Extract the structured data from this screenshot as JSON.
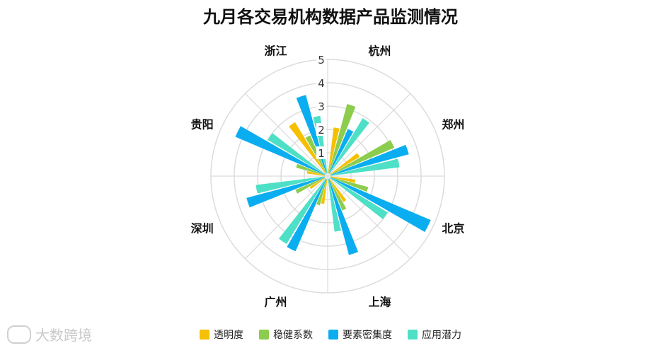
{
  "title": "九月各交易机构数据产品监测情况",
  "watermark": "大数跨境",
  "colors": {
    "透明度": "#f5c000",
    "稳健系数": "#8ccd4d",
    "要素密集度": "#0aaef0",
    "应用潜力": "#4ee0c6"
  },
  "chart_data": {
    "type": "polar-bar",
    "title": "九月各交易机构数据产品监测情况",
    "categories": [
      "杭州",
      "郑州",
      "北京",
      "上海",
      "广州",
      "深圳",
      "贵阳",
      "浙江"
    ],
    "radial_ticks": [
      "1",
      "2",
      "3",
      "4",
      "5"
    ],
    "rlim": [
      0,
      5
    ],
    "series": [
      {
        "name": "透明度",
        "color": "#f5c000",
        "values": [
          2.1,
          1.6,
          1.2,
          1.3,
          1.2,
          0.9,
          0.9,
          2.7
        ]
      },
      {
        "name": "稳健系数",
        "color": "#8ccd4d",
        "values": [
          3.2,
          3.1,
          1.8,
          1.6,
          1.3,
          1.5,
          1.4,
          1.9
        ]
      },
      {
        "name": "要素密集度",
        "color": "#0aaef0",
        "values": [
          2.2,
          3.6,
          4.8,
          3.5,
          3.5,
          3.6,
          4.3,
          3.6
        ]
      },
      {
        "name": "应用潜力",
        "color": "#4ee0c6",
        "values": [
          2.9,
          3.1,
          3.0,
          2.4,
          3.4,
          3.1,
          3.0,
          2.6
        ]
      }
    ],
    "legend": "bottom-center",
    "grid": true
  }
}
